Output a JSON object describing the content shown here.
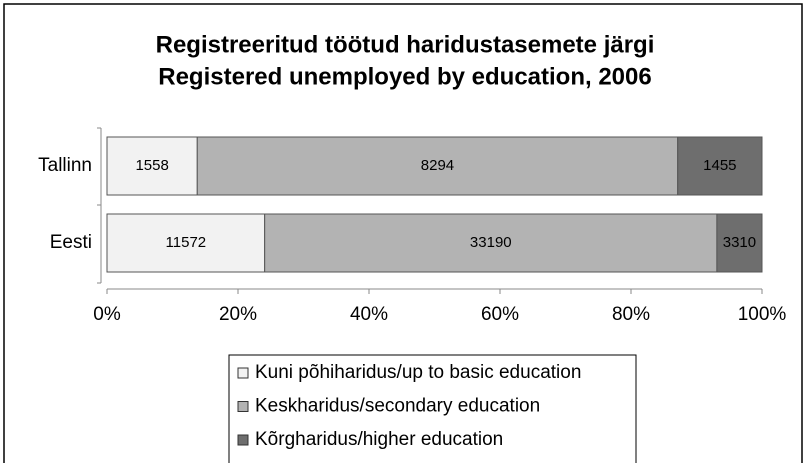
{
  "chart_data": {
    "type": "stacked_bar_percent",
    "title": [
      "Registreeritud töötud haridustasemete järgi",
      "Registered unemployed by education, 2006"
    ],
    "categories": [
      "Tallinn",
      "Eesti"
    ],
    "series": [
      {
        "name": "Kuni põhiharidus/up to basic education",
        "color": "#f2f2f2",
        "values": [
          1558,
          11572
        ]
      },
      {
        "name": "Keskharidus/secondary education",
        "color": "#b3b3b3",
        "values": [
          8294,
          33190
        ]
      },
      {
        "name": "Kõrgharidus/higher education",
        "color": "#6e6e6e",
        "values": [
          1455,
          3310
        ]
      }
    ],
    "xlim": [
      0,
      100
    ],
    "xticks": [
      {
        "value": 0,
        "label": "0%"
      },
      {
        "value": 20,
        "label": "20%"
      },
      {
        "value": 40,
        "label": "40%"
      },
      {
        "value": 60,
        "label": "60%"
      },
      {
        "value": 80,
        "label": "80%"
      },
      {
        "value": 100,
        "label": "100%"
      }
    ],
    "legend": "bottom"
  }
}
